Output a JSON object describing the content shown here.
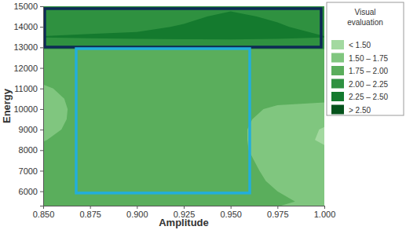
{
  "chart_data": {
    "type": "contour",
    "x_label": "Amplitude",
    "y_label": "Energy",
    "legend": "right",
    "legend_title": [
      "Visual",
      "evaluation"
    ],
    "levels": [
      1.5,
      1.75,
      2.0,
      2.25,
      2.5
    ],
    "level_labels": [
      "< 1.50",
      "1.50 – 1.75",
      "1.75 – 2.00",
      "2.00 – 2.25",
      "2.25 – 2.50",
      "> 2.50"
    ],
    "colors": [
      "#a3d9a0",
      "#80c67f",
      "#5aae5c",
      "#2f9140",
      "#147a2e",
      "#05531c"
    ],
    "xlim": [
      0.85,
      1.0
    ],
    "xticks": [
      {
        "value": 0.85,
        "label": "0.850"
      },
      {
        "value": 0.875,
        "label": "0.875"
      },
      {
        "value": 0.9,
        "label": "0.900"
      },
      {
        "value": 0.925,
        "label": "0.925"
      },
      {
        "value": 0.95,
        "label": "0.950"
      },
      {
        "value": 0.975,
        "label": "0.975"
      },
      {
        "value": 1.0,
        "label": "1.000"
      }
    ],
    "ylim": [
      5300,
      15000
    ],
    "yticks": [
      6000,
      7000,
      8000,
      9000,
      10000,
      11000,
      12000,
      13000,
      14000,
      15000
    ],
    "x": [
      0.85,
      0.875,
      0.9,
      0.925,
      0.95,
      0.975,
      1.0
    ],
    "y": [
      5500,
      6000,
      6500,
      7000,
      7500,
      8000,
      8500,
      9000,
      9500,
      10000,
      10500,
      11000,
      11500,
      12000,
      12500,
      13000,
      13500,
      14000,
      14500,
      15000
    ],
    "z": [
      [
        1.85,
        1.88,
        1.88,
        1.88,
        1.86,
        1.78,
        1.7
      ],
      [
        1.85,
        1.88,
        1.88,
        1.88,
        1.85,
        1.75,
        1.68
      ],
      [
        1.84,
        1.88,
        1.88,
        1.88,
        1.84,
        1.72,
        1.65
      ],
      [
        1.83,
        1.87,
        1.88,
        1.88,
        1.83,
        1.7,
        1.62
      ],
      [
        1.82,
        1.87,
        1.88,
        1.88,
        1.82,
        1.68,
        1.58
      ],
      [
        1.8,
        1.87,
        1.88,
        1.88,
        1.8,
        1.67,
        1.54
      ],
      [
        1.74,
        1.86,
        1.88,
        1.88,
        1.8,
        1.66,
        1.46
      ],
      [
        1.68,
        1.86,
        1.88,
        1.88,
        1.8,
        1.66,
        1.48
      ],
      [
        1.64,
        1.86,
        1.88,
        1.88,
        1.81,
        1.68,
        1.56
      ],
      [
        1.63,
        1.86,
        1.88,
        1.88,
        1.82,
        1.72,
        1.66
      ],
      [
        1.66,
        1.86,
        1.88,
        1.88,
        1.84,
        1.8,
        1.8
      ],
      [
        1.72,
        1.86,
        1.88,
        1.88,
        1.86,
        1.84,
        1.84
      ],
      [
        1.8,
        1.86,
        1.88,
        1.88,
        1.87,
        1.86,
        1.86
      ],
      [
        1.85,
        1.87,
        1.88,
        1.88,
        1.88,
        1.87,
        1.86
      ],
      [
        1.9,
        1.9,
        1.9,
        1.9,
        1.9,
        1.9,
        1.9
      ],
      [
        2.02,
        2.02,
        2.02,
        2.02,
        2.02,
        2.02,
        2.02
      ],
      [
        2.26,
        2.28,
        2.3,
        2.31,
        2.32,
        2.3,
        2.26
      ],
      [
        2.15,
        2.18,
        2.2,
        2.27,
        2.32,
        2.28,
        2.16
      ],
      [
        2.1,
        2.12,
        2.15,
        2.2,
        2.3,
        2.21,
        2.1
      ],
      [
        2.05,
        2.08,
        2.1,
        2.15,
        2.2,
        2.15,
        2.05
      ]
    ],
    "rectangles": [
      {
        "x": [
          0.8508,
          0.9983
        ],
        "y": [
          13015,
          14886
        ],
        "color": "#0d2a55"
      },
      {
        "x": [
          0.8676,
          0.9602
        ],
        "y": [
          5916,
          12939
        ],
        "color": "#22aedb"
      }
    ]
  }
}
